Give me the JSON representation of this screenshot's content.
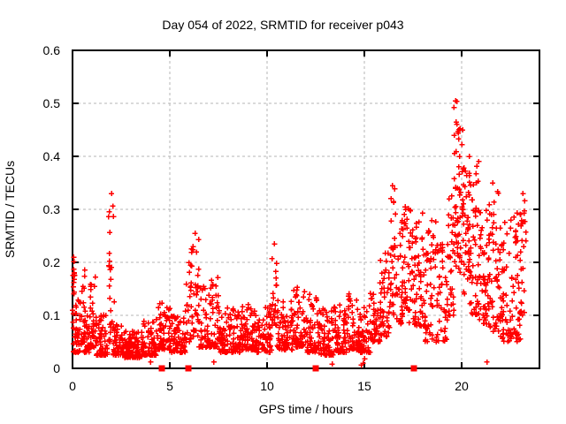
{
  "window": {
    "background": "#ffffff"
  },
  "chart_data": {
    "type": "scatter",
    "title": "Day 054 of 2022, SRMTID for receiver p043",
    "xlabel": "GPS time / hours",
    "ylabel": "SRMTID / TECUs",
    "xlim": [
      0,
      24
    ],
    "ylim": [
      0,
      0.6
    ],
    "xticks": [
      0,
      5,
      10,
      15,
      20
    ],
    "xtick_labels": [
      "0",
      "5",
      "10",
      "15",
      "20"
    ],
    "yticks": [
      0,
      0.1,
      0.2,
      0.3,
      0.4,
      0.5,
      0.6
    ],
    "ytick_labels": [
      "0",
      "0.1",
      "0.2",
      "0.3",
      "0.4",
      "0.5",
      "0.6"
    ],
    "grid": true,
    "legend": "none",
    "marker": "plus",
    "marker_color": "#ff0000",
    "grid_color": "#b4b4b4",
    "axis_color": "#000000",
    "seed": 11,
    "clusters_format": [
      "x_start",
      "x_end",
      "n_points",
      "y_min",
      "y_max",
      "low_bias_exponent"
    ],
    "clusters": [
      [
        0.02,
        0.12,
        12,
        0.13,
        0.215,
        1.0
      ],
      [
        0.0,
        0.45,
        46,
        0.03,
        0.13,
        1.8
      ],
      [
        0.45,
        0.65,
        18,
        0.05,
        0.19,
        1.8
      ],
      [
        0.6,
        0.9,
        32,
        0.03,
        0.12,
        2.0
      ],
      [
        0.9,
        1.2,
        32,
        0.04,
        0.175,
        2.0
      ],
      [
        1.2,
        1.85,
        60,
        0.025,
        0.105,
        2.0
      ],
      [
        1.85,
        2.15,
        26,
        0.05,
        0.335,
        1.5
      ],
      [
        2.1,
        2.6,
        50,
        0.025,
        0.085,
        1.8
      ],
      [
        2.6,
        3.6,
        100,
        0.02,
        0.07,
        1.8
      ],
      [
        3.6,
        4.3,
        65,
        0.025,
        0.09,
        2.0
      ],
      [
        4.3,
        5.1,
        70,
        0.035,
        0.125,
        2.0
      ],
      [
        5.1,
        5.8,
        60,
        0.03,
        0.1,
        2.0
      ],
      [
        5.8,
        6.1,
        24,
        0.05,
        0.21,
        1.4
      ],
      [
        6.1,
        6.5,
        32,
        0.06,
        0.255,
        1.6
      ],
      [
        6.5,
        7.1,
        50,
        0.04,
        0.155,
        2.0
      ],
      [
        7.1,
        7.5,
        32,
        0.04,
        0.175,
        2.0
      ],
      [
        7.5,
        8.6,
        100,
        0.03,
        0.115,
        2.0
      ],
      [
        8.6,
        9.4,
        75,
        0.035,
        0.125,
        2.0
      ],
      [
        9.4,
        10.25,
        75,
        0.03,
        0.12,
        2.0
      ],
      [
        10.25,
        10.5,
        20,
        0.08,
        0.235,
        1.4
      ],
      [
        10.5,
        11.3,
        70,
        0.035,
        0.13,
        2.0
      ],
      [
        11.3,
        12.0,
        65,
        0.04,
        0.16,
        2.0
      ],
      [
        12.0,
        12.6,
        55,
        0.03,
        0.14,
        2.0
      ],
      [
        12.6,
        13.4,
        70,
        0.025,
        0.115,
        2.0
      ],
      [
        13.4,
        14.1,
        65,
        0.03,
        0.12,
        2.0
      ],
      [
        14.1,
        14.7,
        55,
        0.035,
        0.145,
        2.0
      ],
      [
        14.7,
        15.3,
        55,
        0.03,
        0.12,
        2.0
      ],
      [
        15.3,
        15.8,
        45,
        0.05,
        0.145,
        1.8
      ],
      [
        15.8,
        16.3,
        45,
        0.06,
        0.22,
        1.8
      ],
      [
        16.3,
        16.6,
        30,
        0.1,
        0.345,
        1.3
      ],
      [
        16.6,
        17.0,
        34,
        0.08,
        0.28,
        1.5
      ],
      [
        17.0,
        17.3,
        26,
        0.1,
        0.305,
        1.3
      ],
      [
        17.3,
        18.1,
        70,
        0.08,
        0.3,
        1.5
      ],
      [
        18.1,
        18.7,
        52,
        0.05,
        0.28,
        1.6
      ],
      [
        18.7,
        19.3,
        48,
        0.05,
        0.25,
        1.6
      ],
      [
        19.3,
        19.6,
        28,
        0.1,
        0.36,
        1.4
      ],
      [
        19.6,
        19.8,
        24,
        0.18,
        0.505,
        1.0
      ],
      [
        19.8,
        20.1,
        38,
        0.18,
        0.455,
        1.1
      ],
      [
        20.1,
        20.4,
        36,
        0.14,
        0.4,
        1.3
      ],
      [
        20.4,
        20.9,
        48,
        0.1,
        0.4,
        1.6
      ],
      [
        20.9,
        21.4,
        48,
        0.08,
        0.3,
        1.6
      ],
      [
        21.4,
        22.0,
        55,
        0.07,
        0.35,
        1.8
      ],
      [
        22.0,
        22.6,
        52,
        0.05,
        0.28,
        1.8
      ],
      [
        22.6,
        23.1,
        45,
        0.05,
        0.3,
        1.6
      ],
      [
        23.0,
        23.3,
        18,
        0.1,
        0.335,
        1.2
      ]
    ],
    "highlight_points": [
      [
        0.06,
        0.21
      ],
      [
        2.0,
        0.33
      ],
      [
        6.3,
        0.255
      ],
      [
        10.38,
        0.235
      ],
      [
        16.45,
        0.345
      ],
      [
        17.1,
        0.305
      ],
      [
        19.68,
        0.505
      ],
      [
        19.72,
        0.465
      ],
      [
        19.62,
        0.44
      ],
      [
        20.05,
        0.45
      ],
      [
        21.6,
        0.35
      ],
      [
        23.15,
        0.33
      ],
      [
        4.02,
        0.012
      ],
      [
        7.27,
        0.012
      ],
      [
        13.35,
        0.008
      ],
      [
        14.85,
        0.006
      ],
      [
        14.93,
        0.01
      ],
      [
        15.02,
        0.018
      ],
      [
        21.3,
        0.012
      ]
    ],
    "zero_markers_x": [
      4.58,
      5.95,
      12.5,
      17.55
    ]
  }
}
